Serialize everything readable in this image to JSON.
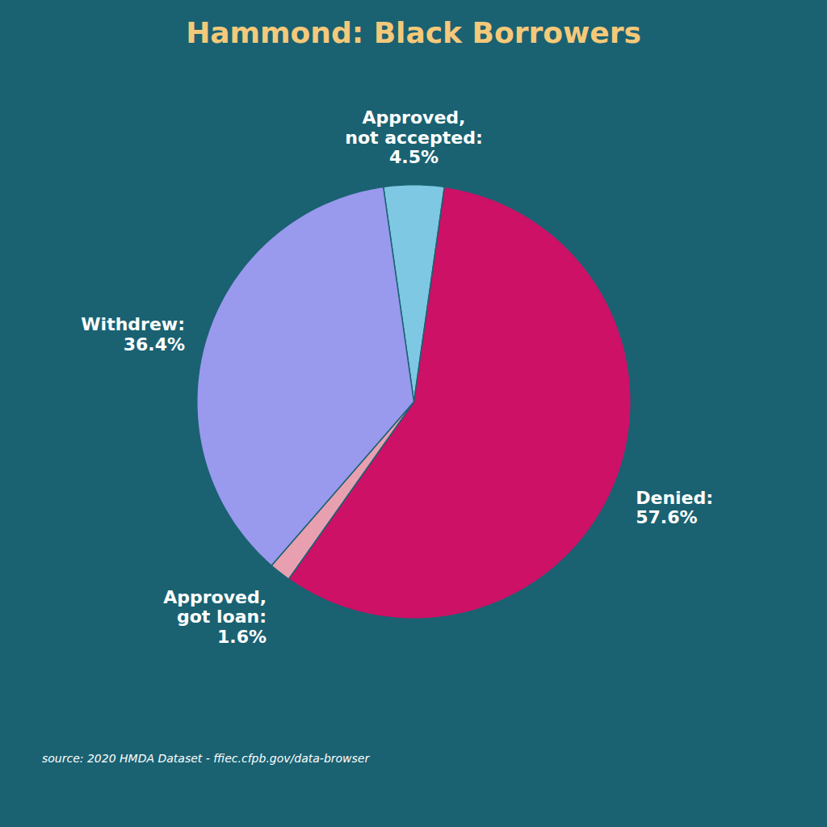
{
  "chart_data": {
    "type": "pie",
    "title": "Hammond: Black Borrowers",
    "caption": "source: 2020 HMDA Dataset - ffiec.cfpb.gov/data-browser",
    "categories": [
      "Approved,\nnot accepted:",
      "Denied:",
      "Approved,\ngot loan:",
      "Withdrew:"
    ],
    "values": [
      4.5,
      57.6,
      1.6,
      36.4
    ],
    "value_labels": [
      "4.5%",
      "57.6%",
      "1.6%",
      "36.4%"
    ],
    "colors": [
      "#7EC8E3",
      "#CC1166",
      "#E8A0B0",
      "#9999EE"
    ],
    "data_labels": true
  }
}
